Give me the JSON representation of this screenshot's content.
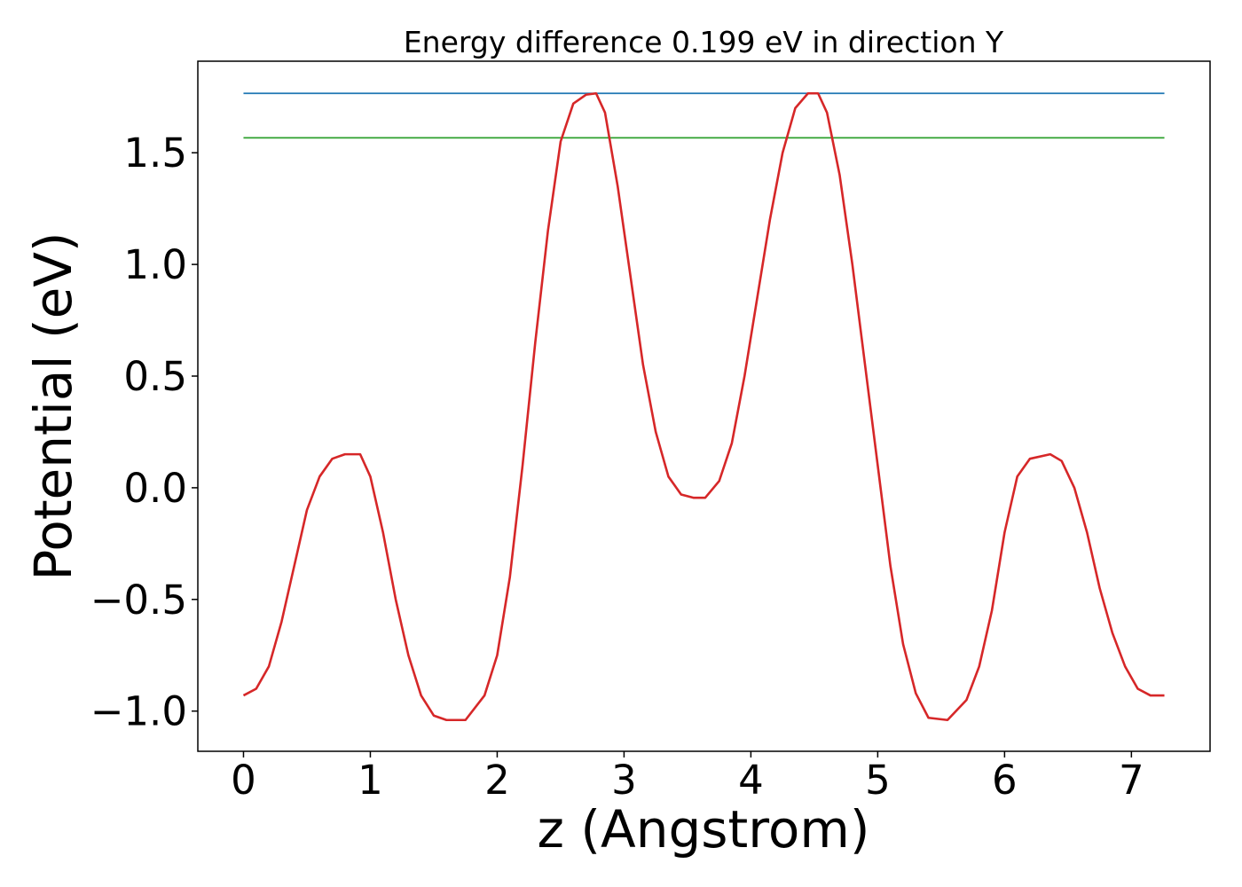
{
  "chart_data": {
    "type": "line",
    "title": "Energy difference 0.199 eV in direction Y",
    "xlabel": "z (Angstrom)",
    "ylabel": "Potential (eV)",
    "xlim": [
      -0.36,
      7.62
    ],
    "ylim": [
      -1.18,
      1.91
    ],
    "xticks": [
      0,
      1,
      2,
      3,
      4,
      5,
      6,
      7
    ],
    "xtick_labels": [
      "0",
      "1",
      "2",
      "3",
      "4",
      "5",
      "6",
      "7"
    ],
    "yticks": [
      -1.0,
      -0.5,
      0.0,
      0.5,
      1.0,
      1.5
    ],
    "ytick_labels": [
      "−1.0",
      "−0.5",
      "0.0",
      "0.5",
      "1.0",
      "1.5"
    ],
    "grid": false,
    "series": [
      {
        "color": "#1f77b4",
        "kind": "hline",
        "x": [
          0.0,
          7.26
        ],
        "y": [
          1.766,
          1.766
        ]
      },
      {
        "color": "#2ca02c",
        "kind": "hline",
        "x": [
          0.0,
          7.26
        ],
        "y": [
          1.567,
          1.567
        ]
      },
      {
        "color": "#d62728",
        "kind": "curve",
        "x": [
          0.0,
          0.1,
          0.2,
          0.3,
          0.4,
          0.5,
          0.6,
          0.7,
          0.8,
          0.92,
          1.0,
          1.1,
          1.2,
          1.3,
          1.4,
          1.5,
          1.6,
          1.75,
          1.9,
          2.0,
          2.1,
          2.2,
          2.3,
          2.4,
          2.5,
          2.6,
          2.7,
          2.78,
          2.85,
          2.95,
          3.05,
          3.15,
          3.25,
          3.35,
          3.45,
          3.55,
          3.64,
          3.75,
          3.85,
          3.95,
          4.05,
          4.15,
          4.25,
          4.35,
          4.45,
          4.53,
          4.6,
          4.7,
          4.8,
          4.9,
          5.0,
          5.1,
          5.2,
          5.3,
          5.4,
          5.55,
          5.7,
          5.8,
          5.9,
          6.0,
          6.1,
          6.2,
          6.36,
          6.45,
          6.55,
          6.65,
          6.75,
          6.85,
          6.95,
          7.05,
          7.15,
          7.26
        ],
        "y": [
          -0.93,
          -0.9,
          -0.8,
          -0.6,
          -0.35,
          -0.1,
          0.05,
          0.13,
          0.15,
          0.15,
          0.05,
          -0.2,
          -0.5,
          -0.75,
          -0.93,
          -1.02,
          -1.04,
          -1.04,
          -0.93,
          -0.75,
          -0.4,
          0.1,
          0.65,
          1.15,
          1.55,
          1.72,
          1.76,
          1.766,
          1.68,
          1.35,
          0.95,
          0.55,
          0.25,
          0.05,
          -0.03,
          -0.045,
          -0.045,
          0.03,
          0.2,
          0.5,
          0.85,
          1.2,
          1.5,
          1.7,
          1.766,
          1.766,
          1.68,
          1.4,
          1.0,
          0.55,
          0.1,
          -0.35,
          -0.7,
          -0.92,
          -1.03,
          -1.04,
          -0.95,
          -0.8,
          -0.55,
          -0.2,
          0.05,
          0.13,
          0.15,
          0.12,
          0.0,
          -0.2,
          -0.45,
          -0.65,
          -0.8,
          -0.9,
          -0.93,
          -0.93
        ]
      }
    ]
  }
}
